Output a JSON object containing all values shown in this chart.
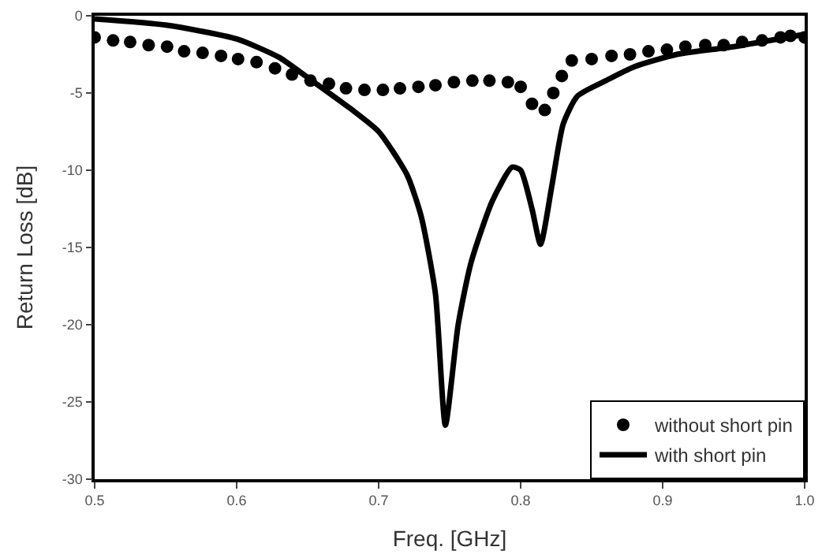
{
  "chart_data": {
    "type": "line",
    "xlabel": "Freq. [GHz]",
    "ylabel": "Return Loss [dB]",
    "xlim": [
      0.5,
      1.0
    ],
    "xticks": [
      0.5,
      0.6,
      0.7,
      0.8,
      0.9,
      {
        "value": 1.0,
        "label": "1.0"
      }
    ],
    "ylim": [
      -30,
      0
    ],
    "yticks": [
      -30,
      -25,
      -20,
      -15,
      -10,
      -5,
      0
    ],
    "legend": "bottom right",
    "series": [
      {
        "name": "without short pin",
        "type": "scatter",
        "color": "#000000",
        "marker": "circle",
        "x": [
          0.5,
          0.513,
          0.525,
          0.538,
          0.551,
          0.563,
          0.576,
          0.589,
          0.601,
          0.614,
          0.627,
          0.639,
          0.652,
          0.665,
          0.677,
          0.69,
          0.703,
          0.715,
          0.728,
          0.74,
          0.753,
          0.766,
          0.778,
          0.791,
          0.8,
          0.808,
          0.817,
          0.823,
          0.829,
          0.836,
          0.85,
          0.864,
          0.877,
          0.89,
          0.903,
          0.916,
          0.93,
          0.943,
          0.956,
          0.97,
          0.983,
          0.99,
          1.0
        ],
        "values": [
          -1.4,
          -1.6,
          -1.7,
          -1.9,
          -2.0,
          -2.3,
          -2.4,
          -2.6,
          -2.8,
          -3.0,
          -3.4,
          -3.8,
          -4.2,
          -4.4,
          -4.7,
          -4.8,
          -4.8,
          -4.7,
          -4.6,
          -4.5,
          -4.3,
          -4.2,
          -4.2,
          -4.3,
          -4.6,
          -5.7,
          -6.1,
          -5.0,
          -3.9,
          -2.9,
          -2.8,
          -2.6,
          -2.5,
          -2.3,
          -2.2,
          -2.0,
          -1.9,
          -1.9,
          -1.7,
          -1.6,
          -1.4,
          -1.3,
          -1.4
        ]
      },
      {
        "name": "with short pin",
        "color": "#000000",
        "marker": "none",
        "line_style": "solid",
        "x": [
          0.5,
          0.55,
          0.6,
          0.63,
          0.65,
          0.68,
          0.7,
          0.72,
          0.73,
          0.74,
          0.747,
          0.756,
          0.765,
          0.78,
          0.794,
          0.8,
          0.808,
          0.814,
          0.822,
          0.83,
          0.84,
          0.86,
          0.88,
          0.91,
          0.95,
          1.0
        ],
        "values": [
          -0.2,
          -0.6,
          -1.5,
          -2.7,
          -4.0,
          -6.0,
          -7.5,
          -10.3,
          -13,
          -18,
          -26.5,
          -20,
          -16,
          -12,
          -9.8,
          -10,
          -12.5,
          -14.8,
          -11,
          -7,
          -5.2,
          -4.2,
          -3.3,
          -2.5,
          -2.0,
          -1.2
        ]
      }
    ]
  }
}
